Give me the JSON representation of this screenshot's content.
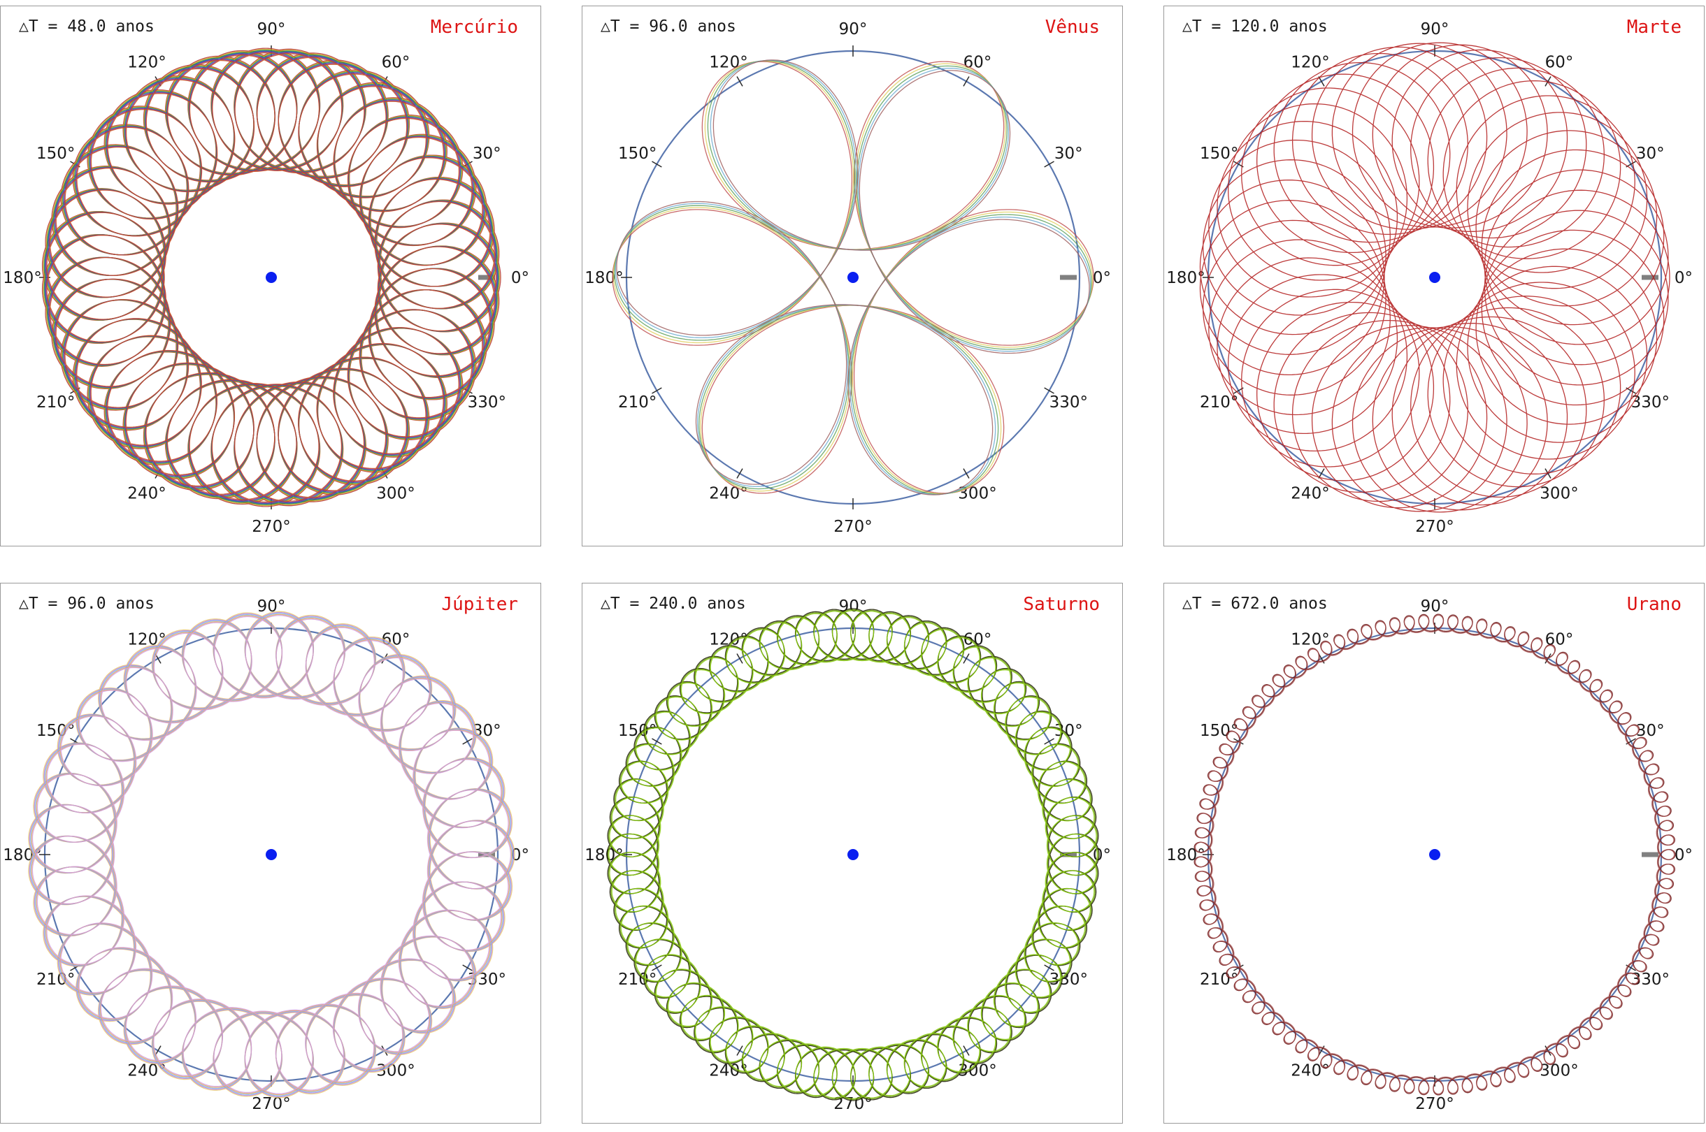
{
  "angle_labels": [
    "0°",
    "30°",
    "60°",
    "90°",
    "120°",
    "150°",
    "180°",
    "210°",
    "240°",
    "270°",
    "300°",
    "330°"
  ],
  "colors": {
    "outer_circle": "#5b78b0",
    "ticks": "#2a2a2a",
    "zero_marker": "#808080",
    "center_dot": "#0a1ff0",
    "planet_name": "#dd1414"
  },
  "panels": [
    {
      "planet": "Mercúrio",
      "delta_t": "△T = 48.0 anos",
      "chart_data": {
        "type": "polar-rosette",
        "r_min": 0.39,
        "r_max": 0.82,
        "petals": 46,
        "colors": [
          "#b03030",
          "#d8a020",
          "#3a9a3a",
          "#3060c0",
          "#8a2a8a",
          "#c85020"
        ]
      }
    },
    {
      "planet": "Vênus",
      "delta_t": "△T = 96.0 anos",
      "chart_data": {
        "type": "polar-rosette",
        "r_min": 0.1,
        "r_max": 0.86,
        "petals": 5,
        "colors": [
          "#c05050",
          "#e0d060",
          "#5aa05a",
          "#6aaad0",
          "#a06060"
        ]
      }
    },
    {
      "planet": "Marte",
      "delta_t": "△T = 120.0 anos",
      "chart_data": {
        "type": "polar-rosette",
        "r_min": 0.18,
        "r_max": 0.84,
        "petals": 44,
        "colors": [
          "#b01818"
        ]
      }
    },
    {
      "planet": "Júpiter",
      "delta_t": "△T = 96.0 anos",
      "chart_data": {
        "type": "polar-rosette",
        "r_min": 0.57,
        "r_max": 0.87,
        "petals": 40,
        "colors": [
          "#e8c870",
          "#b080e0",
          "#80c0e8",
          "#e8a060",
          "#d0a0e0"
        ]
      }
    },
    {
      "planet": "Saturno",
      "delta_t": "△T = 240.0 anos",
      "chart_data": {
        "type": "polar-rosette",
        "r_min": 0.7,
        "r_max": 0.88,
        "petals": 75,
        "colors": [
          "#1a1a00",
          "#5a8a00",
          "#8acb10"
        ]
      }
    },
    {
      "planet": "Urano",
      "delta_t": "△T = 672.0 anos",
      "chart_data": {
        "type": "polar-rosette",
        "r_min": 0.8,
        "r_max": 0.86,
        "petals": 100,
        "colors": [
          "#6a1010",
          "#a04a4a"
        ]
      }
    }
  ]
}
